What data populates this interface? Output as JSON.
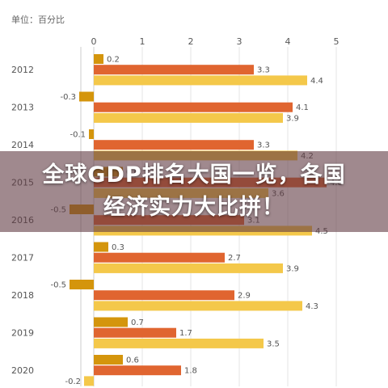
{
  "unit_label": "单位：百分比",
  "overlay": {
    "line1": "全球GDP排名大国一览，各国",
    "line2": "经济实力大比拼！"
  },
  "colors": {
    "series1": "#d4950c",
    "series2": "#e06530",
    "series3": "#f4c84a",
    "axis": "#cccccc",
    "grid": "#e6e6e6",
    "text": "#555555"
  },
  "chart_data": {
    "type": "bar",
    "orientation": "horizontal",
    "title": "",
    "xlabel": "",
    "ylabel": "",
    "xlim": [
      -0.6,
      5.4
    ],
    "x_ticks": [
      0,
      1,
      2,
      3,
      4,
      5
    ],
    "grid": true,
    "categories": [
      "2012",
      "2013",
      "2014",
      "2015",
      "2016",
      "2017",
      "2018",
      "2019",
      "2020"
    ],
    "series": [
      {
        "values": [
          0.2,
          -0.3,
          -0.1,
          0.6,
          -0.5,
          0.3,
          -0.5,
          0.7,
          0.6
        ]
      },
      {
        "values": [
          3.3,
          4.1,
          3.3,
          4.8,
          3.1,
          2.7,
          2.9,
          1.7,
          1.8
        ]
      },
      {
        "values": [
          4.4,
          3.9,
          4.2,
          3.6,
          4.5,
          3.9,
          4.3,
          3.5,
          -0.2
        ]
      }
    ]
  }
}
